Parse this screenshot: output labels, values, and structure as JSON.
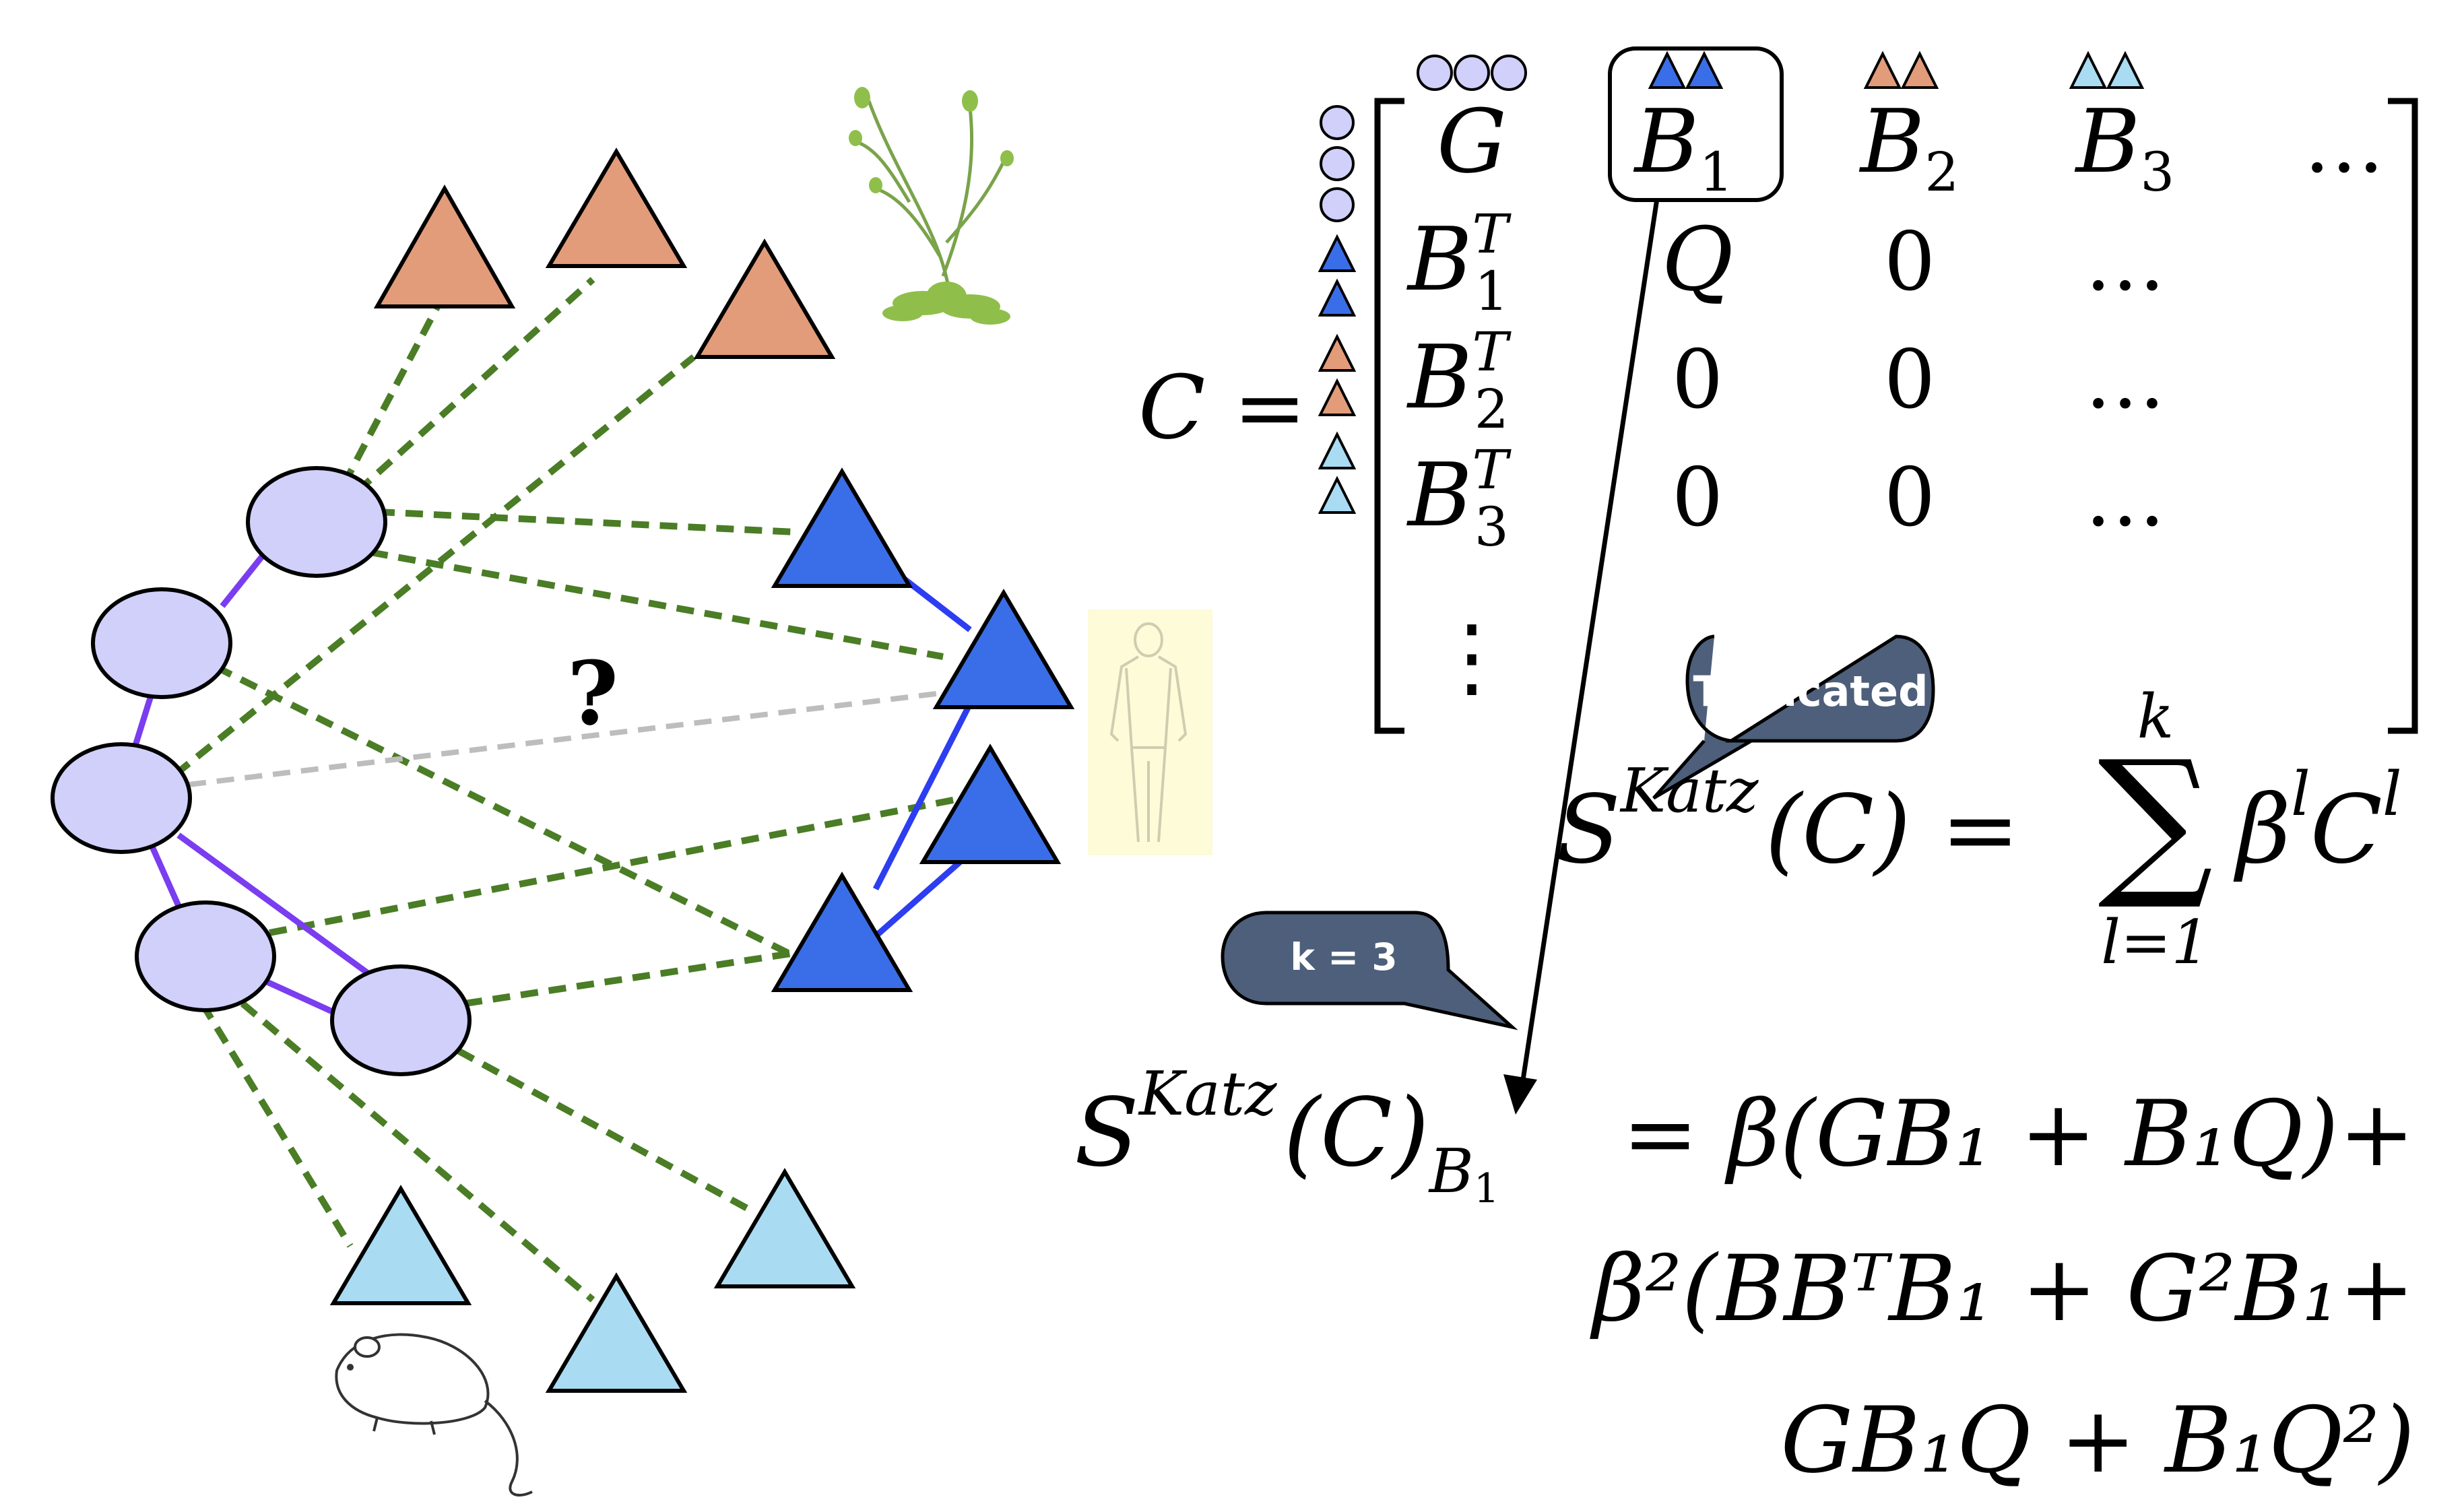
{
  "network": {
    "question_mark": "?"
  },
  "colors": {
    "gene_node": "#d0d0fb",
    "human_triangle": "#3a6ee8",
    "plant_triangle": "#e29c7a",
    "mouse_triangle": "#a9dcf3",
    "gene_gene_edge": "#7a3df0",
    "phenotype_phenotype_edge": "#2d3df0",
    "association_edge": "#4a7d25",
    "unknown_edge": "#bdbdbd",
    "callout_fill": "#4d5f7a",
    "human_panel_bg": "#fdfbd8"
  },
  "icons": {
    "plant": "plant-icon",
    "human": "human-body-icon",
    "mouse": "mouse-icon"
  },
  "matrix": {
    "lhs": "C =",
    "col_headers": [
      "G",
      "B",
      "B",
      "B",
      "…"
    ],
    "col_header_subs": [
      "",
      "1",
      "2",
      "3",
      ""
    ],
    "row_headers": [
      "B",
      "B",
      "B",
      "⋮"
    ],
    "row_header_sups": [
      "T",
      "T",
      "T",
      ""
    ],
    "row_header_subs": [
      "1",
      "2",
      "3",
      ""
    ],
    "cells": [
      [
        "Q",
        "0",
        "…"
      ],
      [
        "0",
        "0",
        "…"
      ],
      [
        "0",
        "0",
        "…"
      ]
    ]
  },
  "callouts": {
    "truncated": "Truncated",
    "k": "k = 3"
  },
  "formula_katz": {
    "s": "S",
    "sup": "Katz",
    "arg": "(C) =",
    "sum_upper": "k",
    "sum_lower": "l=1",
    "sigma": "∑",
    "term": "β",
    "term_sup": "l",
    "term_c": "C",
    "term_c_sup": "l"
  },
  "formula_b1": {
    "s": "S",
    "sup": "Katz",
    "arg": "(C)",
    "sub": "B",
    "sub_sub": "1",
    "line1": "= β(GB₁ + B₁Q)+",
    "line2": "β²(BBᵀB₁ + G²B₁+",
    "line3": "GB₁Q + B₁Q²)"
  }
}
